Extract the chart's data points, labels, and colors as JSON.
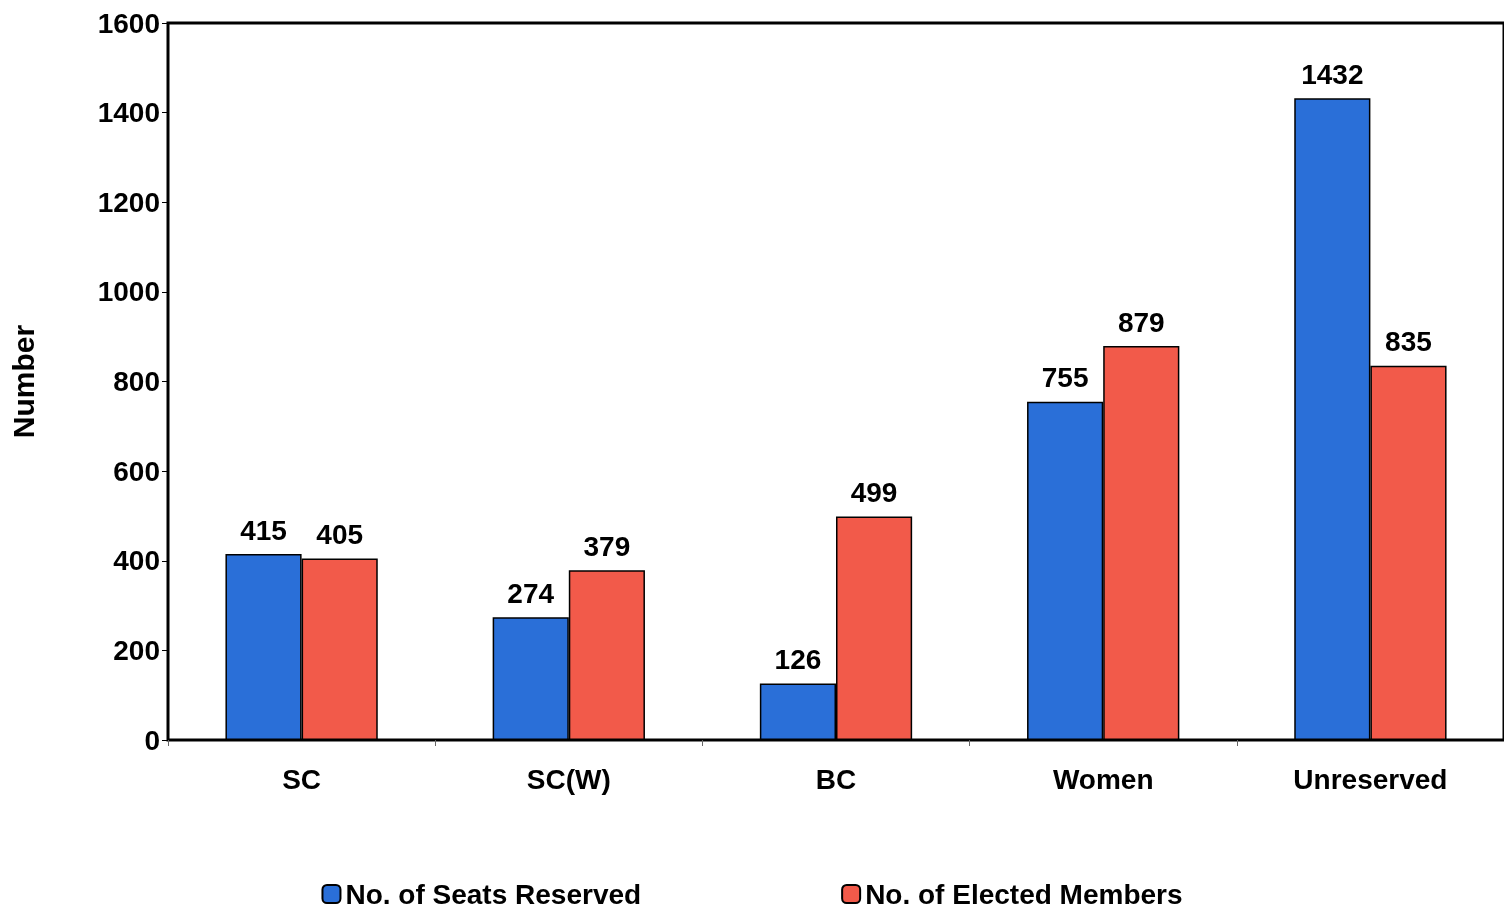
{
  "chart_data": {
    "type": "bar",
    "ylabel": "Number",
    "categories": [
      "SC",
      "SC(W)",
      "BC",
      "Women",
      "Unreserved"
    ],
    "series": [
      {
        "name": "No. of Seats Reserved",
        "color": "#2a6fd8",
        "values": [
          415,
          274,
          126,
          755,
          1432
        ]
      },
      {
        "name": "No. of Elected Members",
        "color": "#f25a4a",
        "values": [
          405,
          379,
          499,
          879,
          835
        ]
      }
    ],
    "ylim": [
      0,
      1600
    ],
    "yticks": [
      0,
      200,
      400,
      600,
      800,
      1000,
      1200,
      1400,
      1600
    ],
    "grid": false,
    "legend": "bottom",
    "data_labels": true
  }
}
